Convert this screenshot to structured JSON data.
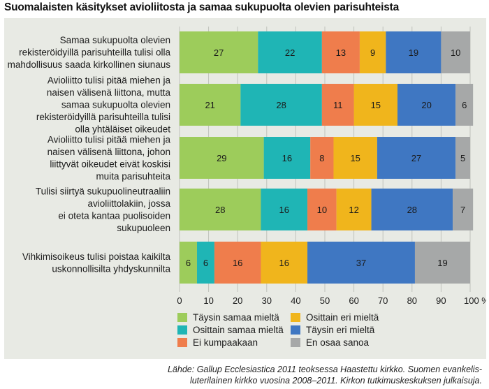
{
  "title": "Suomalaisten käsitykset avioliitosta ja samaa sukupuolta olevien parisuhteista",
  "source_lines": [
    "Lähde: Gallup Ecclesiastica 2011 teoksessa Haastettu kirkko. Suomen evankelis-",
    "luterilainen kirkko vuosina 2008–2011. Kirkon tutkimuskeskuksen julkaisuja."
  ],
  "chart_data": {
    "type": "bar",
    "orientation": "horizontal",
    "stacked": true,
    "xlim": [
      0,
      100
    ],
    "x_ticks": [
      0,
      10,
      20,
      30,
      40,
      50,
      60,
      70,
      80,
      90,
      100
    ],
    "x_unit": "%",
    "legend_position": "bottom",
    "grid": true,
    "categories": [
      [
        "Samaa sukupuolta olevien",
        "rekisteröidyillä parisuhteilla tulisi olla",
        "mahdollisuus saada kirkollinen siunaus"
      ],
      [
        "Avioliitto tulisi pitää miehen ja",
        "naisen välisenä liittona, mutta",
        "samaa sukupuolta olevien",
        "rekisteröidyillä parisuhteilla tulisi",
        "olla yhtäläiset oikeudet"
      ],
      [
        "Avioliitto tulisi pitää miehen ja",
        "naisen välisenä liittona, johon",
        "liittyvät oikeudet eivät koskisi",
        "muita parisuhteita"
      ],
      [
        "Tulisi siirtyä sukupuolineutraaliin",
        "avioliittolakiin, jossa",
        "ei oteta kantaa puolisoiden",
        "sukupuoleen"
      ],
      [
        "Vihkimisoikeus tulisi poistaa kaikilta",
        "uskonnollisilta yhdyskunnilta"
      ]
    ],
    "series": [
      {
        "name": "Täysin samaa mieltä",
        "color": "#9dcc5b",
        "values": [
          27,
          21,
          29,
          28,
          6
        ]
      },
      {
        "name": "Osittain samaa mieltä",
        "color": "#1fb5b5",
        "values": [
          22,
          28,
          16,
          16,
          6
        ]
      },
      {
        "name": "Ei kumpaakaan",
        "color": "#ef7d4c",
        "values": [
          13,
          11,
          8,
          10,
          16
        ]
      },
      {
        "name": "Osittain eri mieltä",
        "color": "#f0b51c",
        "values": [
          9,
          15,
          15,
          12,
          16
        ]
      },
      {
        "name": "Täysin eri mieltä",
        "color": "#3f77c2",
        "values": [
          19,
          20,
          27,
          28,
          37
        ]
      },
      {
        "name": "En osaa sanoa",
        "color": "#a6a8a8",
        "values": [
          10,
          6,
          5,
          7,
          19
        ]
      }
    ]
  }
}
